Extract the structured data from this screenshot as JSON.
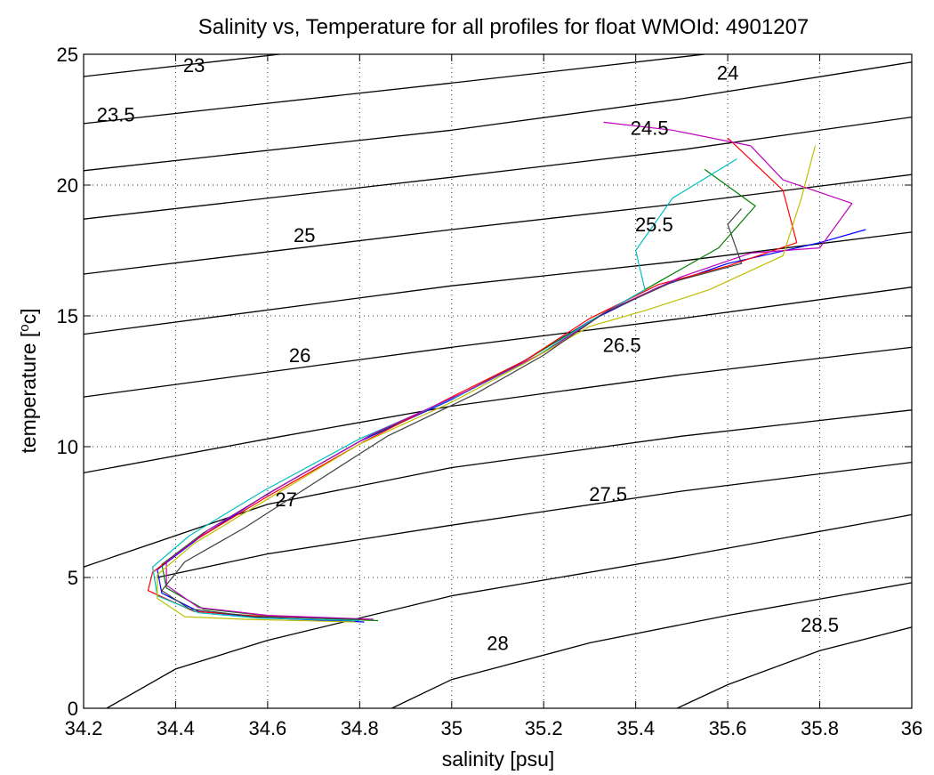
{
  "chart_data": {
    "type": "line",
    "title": "Salinity vs, Temperature for all profiles for float WMOId: 4901207",
    "xlabel": "salinity [psu]",
    "ylabel_prefix": "temperature [",
    "ylabel_sup": "o",
    "ylabel_suffix": "c]",
    "xlim": [
      34.2,
      36
    ],
    "ylim": [
      0,
      25
    ],
    "x_ticks": [
      34.2,
      34.4,
      34.6,
      34.8,
      35,
      35.2,
      35.4,
      35.6,
      35.8,
      36
    ],
    "x_tick_labels": [
      "34.2",
      "34.4",
      "34.6",
      "34.8",
      "35",
      "35.2",
      "35.4",
      "35.6",
      "35.8",
      "36"
    ],
    "y_ticks": [
      0,
      5,
      10,
      15,
      20,
      25
    ],
    "y_tick_labels": [
      "0",
      "5",
      "10",
      "15",
      "20",
      "25"
    ],
    "grid": true,
    "grid_style": "dotted",
    "density_contours": [
      {
        "label": "23",
        "label_at": [
          34.44,
          24.6
        ],
        "points": [
          [
            34.2,
            24.15
          ],
          [
            34.6,
            24.95
          ],
          [
            34.7,
            25.15
          ]
        ]
      },
      {
        "label": "23.5",
        "label_at": [
          34.27,
          22.7
        ],
        "points": [
          [
            34.2,
            22.35
          ],
          [
            35.0,
            23.9
          ],
          [
            35.55,
            25.0
          ]
        ]
      },
      {
        "label": "24",
        "label_at": [
          35.6,
          24.3
        ],
        "points": [
          [
            34.2,
            20.55
          ],
          [
            35.0,
            22.1
          ],
          [
            35.5,
            23.3
          ],
          [
            36.0,
            24.7
          ]
        ]
      },
      {
        "label": "24.5",
        "label_at": [
          35.43,
          22.2
        ],
        "points": [
          [
            34.2,
            18.7
          ],
          [
            35.0,
            20.3
          ],
          [
            35.5,
            21.35
          ],
          [
            36.0,
            22.6
          ]
        ]
      },
      {
        "label": "25",
        "label_at": [
          34.68,
          18.1
        ],
        "points": [
          [
            34.2,
            16.6
          ],
          [
            35.0,
            18.3
          ],
          [
            35.5,
            19.3
          ],
          [
            36.0,
            20.4
          ]
        ]
      },
      {
        "label": "25.5",
        "label_at": [
          35.44,
          18.5
        ],
        "points": [
          [
            34.2,
            14.3
          ],
          [
            35.0,
            16.15
          ],
          [
            35.5,
            17.1
          ],
          [
            36.0,
            18.2
          ]
        ]
      },
      {
        "label": "26",
        "label_at": [
          34.67,
          13.5
        ],
        "points": [
          [
            34.2,
            11.9
          ],
          [
            35.0,
            13.8
          ],
          [
            35.5,
            14.9
          ],
          [
            36.0,
            16.1
          ]
        ]
      },
      {
        "label": "26.5",
        "label_at": [
          35.37,
          13.9
        ],
        "points": [
          [
            34.2,
            9.0
          ],
          [
            34.6,
            10.3
          ],
          [
            35.0,
            11.55
          ],
          [
            35.5,
            12.75
          ],
          [
            36.0,
            13.8
          ]
        ]
      },
      {
        "label": "27",
        "label_at": [
          34.64,
          8.0
        ],
        "points": [
          [
            34.2,
            5.4
          ],
          [
            34.4,
            6.6
          ],
          [
            34.6,
            7.8
          ],
          [
            35.0,
            9.2
          ],
          [
            35.5,
            10.4
          ],
          [
            36.0,
            11.4
          ]
        ]
      },
      {
        "label": "27.5",
        "label_at": [
          35.34,
          8.2
        ],
        "points": [
          [
            34.36,
            5.0
          ],
          [
            34.6,
            5.9
          ],
          [
            35.0,
            7.0
          ],
          [
            35.5,
            8.3
          ],
          [
            36.0,
            9.4
          ]
        ]
      },
      {
        "label": "28",
        "label_at": [
          35.1,
          2.5
        ],
        "points": [
          [
            34.25,
            0.0
          ],
          [
            34.4,
            1.5
          ],
          [
            34.6,
            2.6
          ],
          [
            35.0,
            4.3
          ],
          [
            35.5,
            5.8
          ],
          [
            36.0,
            7.4
          ]
        ]
      },
      {
        "label": "28.5",
        "label_at": [
          35.8,
          3.2
        ],
        "points": [
          [
            34.87,
            0.0
          ],
          [
            35.0,
            1.1
          ],
          [
            35.3,
            2.5
          ],
          [
            35.6,
            3.55
          ],
          [
            36.0,
            4.8
          ]
        ]
      },
      {
        "label": "",
        "label_at": null,
        "points": [
          [
            35.49,
            0.0
          ],
          [
            35.6,
            0.9
          ],
          [
            35.8,
            2.2
          ],
          [
            36.0,
            3.1
          ]
        ]
      }
    ],
    "series": [
      {
        "color": "#0000ff",
        "points": [
          [
            34.81,
            3.3
          ],
          [
            34.6,
            3.45
          ],
          [
            34.45,
            3.7
          ],
          [
            34.37,
            4.4
          ],
          [
            34.36,
            5.3
          ],
          [
            34.45,
            6.5
          ],
          [
            34.6,
            8.2
          ],
          [
            34.8,
            10.2
          ],
          [
            35.0,
            11.8
          ],
          [
            35.15,
            13.2
          ],
          [
            35.3,
            14.8
          ],
          [
            35.45,
            16.1
          ],
          [
            35.6,
            17.0
          ],
          [
            35.8,
            17.8
          ],
          [
            35.9,
            18.3
          ]
        ]
      },
      {
        "color": "#008000",
        "points": [
          [
            34.84,
            3.35
          ],
          [
            34.62,
            3.5
          ],
          [
            34.46,
            3.8
          ],
          [
            34.38,
            4.6
          ],
          [
            34.37,
            5.5
          ],
          [
            34.46,
            6.7
          ],
          [
            34.62,
            8.4
          ],
          [
            34.82,
            10.4
          ],
          [
            35.02,
            12.0
          ],
          [
            35.17,
            13.4
          ],
          [
            35.32,
            15.0
          ],
          [
            35.46,
            16.4
          ],
          [
            35.58,
            17.6
          ],
          [
            35.66,
            19.2
          ],
          [
            35.55,
            20.6
          ]
        ]
      },
      {
        "color": "#ff0000",
        "points": [
          [
            34.82,
            3.4
          ],
          [
            34.6,
            3.5
          ],
          [
            34.44,
            3.7
          ],
          [
            34.34,
            4.5
          ],
          [
            34.35,
            5.2
          ],
          [
            34.44,
            6.4
          ],
          [
            34.6,
            8.1
          ],
          [
            34.81,
            10.2
          ],
          [
            35.0,
            11.9
          ],
          [
            35.16,
            13.3
          ],
          [
            35.3,
            14.9
          ],
          [
            35.45,
            16.2
          ],
          [
            35.6,
            16.9
          ],
          [
            35.75,
            17.8
          ],
          [
            35.72,
            19.8
          ],
          [
            35.6,
            21.8
          ]
        ]
      },
      {
        "color": "#00bfbf",
        "points": [
          [
            34.8,
            3.35
          ],
          [
            34.58,
            3.45
          ],
          [
            34.45,
            3.65
          ],
          [
            34.36,
            4.3
          ],
          [
            34.35,
            5.4
          ],
          [
            34.43,
            6.6
          ],
          [
            34.59,
            8.3
          ],
          [
            34.8,
            10.3
          ],
          [
            35.01,
            11.9
          ],
          [
            35.18,
            13.4
          ],
          [
            35.31,
            14.9
          ],
          [
            35.42,
            16.0
          ],
          [
            35.4,
            17.5
          ],
          [
            35.48,
            19.5
          ],
          [
            35.62,
            21.0
          ]
        ]
      },
      {
        "color": "#bf00bf",
        "points": [
          [
            34.83,
            3.4
          ],
          [
            34.6,
            3.55
          ],
          [
            34.45,
            3.85
          ],
          [
            34.38,
            4.7
          ],
          [
            34.38,
            5.6
          ],
          [
            34.47,
            6.8
          ],
          [
            34.63,
            8.5
          ],
          [
            34.83,
            10.5
          ],
          [
            35.03,
            12.1
          ],
          [
            35.2,
            13.6
          ],
          [
            35.34,
            15.2
          ],
          [
            35.5,
            16.5
          ],
          [
            35.65,
            17.4
          ],
          [
            35.8,
            17.6
          ],
          [
            35.87,
            19.3
          ],
          [
            35.72,
            20.2
          ],
          [
            35.65,
            21.5
          ],
          [
            35.48,
            22.1
          ],
          [
            35.33,
            22.4
          ]
        ]
      },
      {
        "color": "#bfbf00",
        "points": [
          [
            34.79,
            3.3
          ],
          [
            34.55,
            3.4
          ],
          [
            34.42,
            3.5
          ],
          [
            34.36,
            4.2
          ],
          [
            34.36,
            5.1
          ],
          [
            34.44,
            6.3
          ],
          [
            34.6,
            8.0
          ],
          [
            34.8,
            10.1
          ],
          [
            35.0,
            11.7
          ],
          [
            35.16,
            13.2
          ],
          [
            35.3,
            14.6
          ],
          [
            35.42,
            15.2
          ],
          [
            35.56,
            16.0
          ],
          [
            35.72,
            17.3
          ],
          [
            35.76,
            19.5
          ],
          [
            35.79,
            21.5
          ]
        ]
      },
      {
        "color": "#404040",
        "points": [
          [
            34.8,
            3.4
          ],
          [
            34.57,
            3.5
          ],
          [
            34.43,
            3.8
          ],
          [
            34.37,
            4.5
          ],
          [
            34.42,
            5.6
          ],
          [
            34.55,
            6.9
          ],
          [
            34.7,
            8.6
          ],
          [
            34.86,
            10.4
          ],
          [
            35.05,
            12.0
          ],
          [
            35.2,
            13.5
          ],
          [
            35.33,
            15.1
          ],
          [
            35.48,
            16.3
          ],
          [
            35.63,
            17.0
          ],
          [
            35.6,
            18.5
          ],
          [
            35.63,
            19.1
          ]
        ]
      }
    ]
  }
}
